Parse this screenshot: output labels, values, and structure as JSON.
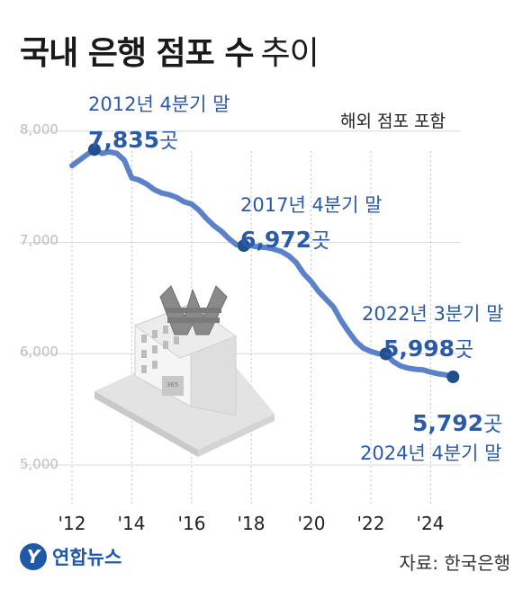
{
  "title": {
    "main": "국내 은행 점포 수",
    "sub": "추이"
  },
  "note": "해외 점포 포함",
  "source": "자료: 한국은행",
  "logo": {
    "mark": "Y",
    "text": "연합뉴스"
  },
  "annotations": [
    {
      "label": "2012년 4분기 말",
      "value": "7,835",
      "unit": "곳"
    },
    {
      "label": "2017년 4분기 말",
      "value": "6,972",
      "unit": "곳"
    },
    {
      "label": "2022년 3분기 말",
      "value": "5,998",
      "unit": "곳"
    },
    {
      "label": "2024년 4분기 말",
      "value": "5,792",
      "unit": "곳"
    }
  ],
  "colors": {
    "line": "#5b82c9",
    "marker": "#22508f",
    "label": "#2b5aa8",
    "grid": "#c8c8c8"
  },
  "illustration": "bank-building-icon",
  "chart_data": {
    "type": "line",
    "title": "국내 은행 점포 수 추이",
    "xlabel": "",
    "ylabel": "",
    "ylim": [
      5000,
      8000
    ],
    "yticks": [
      5000,
      6000,
      7000,
      8000
    ],
    "ytick_labels": [
      "5,000",
      "6,000",
      "7,000",
      "8,000"
    ],
    "xticks": [
      2012,
      2014,
      2016,
      2018,
      2020,
      2022,
      2024
    ],
    "xtick_labels": [
      "'12",
      "'14",
      "'16",
      "'18",
      "'20",
      "'22",
      "'24"
    ],
    "grid": "vertical dotted",
    "x": [
      2012.0,
      2012.25,
      2012.5,
      2012.75,
      2013.0,
      2013.25,
      2013.5,
      2013.75,
      2014.0,
      2014.25,
      2014.5,
      2014.75,
      2015.0,
      2015.25,
      2015.5,
      2015.75,
      2016.0,
      2016.25,
      2016.5,
      2016.75,
      2017.0,
      2017.25,
      2017.5,
      2017.75,
      2018.0,
      2018.25,
      2018.5,
      2018.75,
      2019.0,
      2019.25,
      2019.5,
      2019.75,
      2020.0,
      2020.25,
      2020.5,
      2020.75,
      2021.0,
      2021.25,
      2021.5,
      2021.75,
      2022.0,
      2022.25,
      2022.5,
      2022.75,
      2023.0,
      2023.25,
      2023.5,
      2023.75,
      2024.0,
      2024.25,
      2024.5,
      2024.75
    ],
    "y": [
      7690,
      7740,
      7790,
      7835,
      7800,
      7815,
      7800,
      7740,
      7580,
      7560,
      7525,
      7475,
      7445,
      7430,
      7405,
      7365,
      7345,
      7290,
      7215,
      7150,
      7100,
      7035,
      6980,
      6972,
      6970,
      6960,
      6955,
      6940,
      6920,
      6880,
      6820,
      6720,
      6650,
      6560,
      6490,
      6420,
      6300,
      6200,
      6110,
      6050,
      6020,
      6000,
      5998,
      5930,
      5890,
      5870,
      5860,
      5855,
      5835,
      5820,
      5810,
      5792
    ],
    "highlights": [
      {
        "x": 2012.75,
        "y": 7835
      },
      {
        "x": 2017.75,
        "y": 6972
      },
      {
        "x": 2022.5,
        "y": 5998
      },
      {
        "x": 2024.75,
        "y": 5792
      }
    ]
  }
}
